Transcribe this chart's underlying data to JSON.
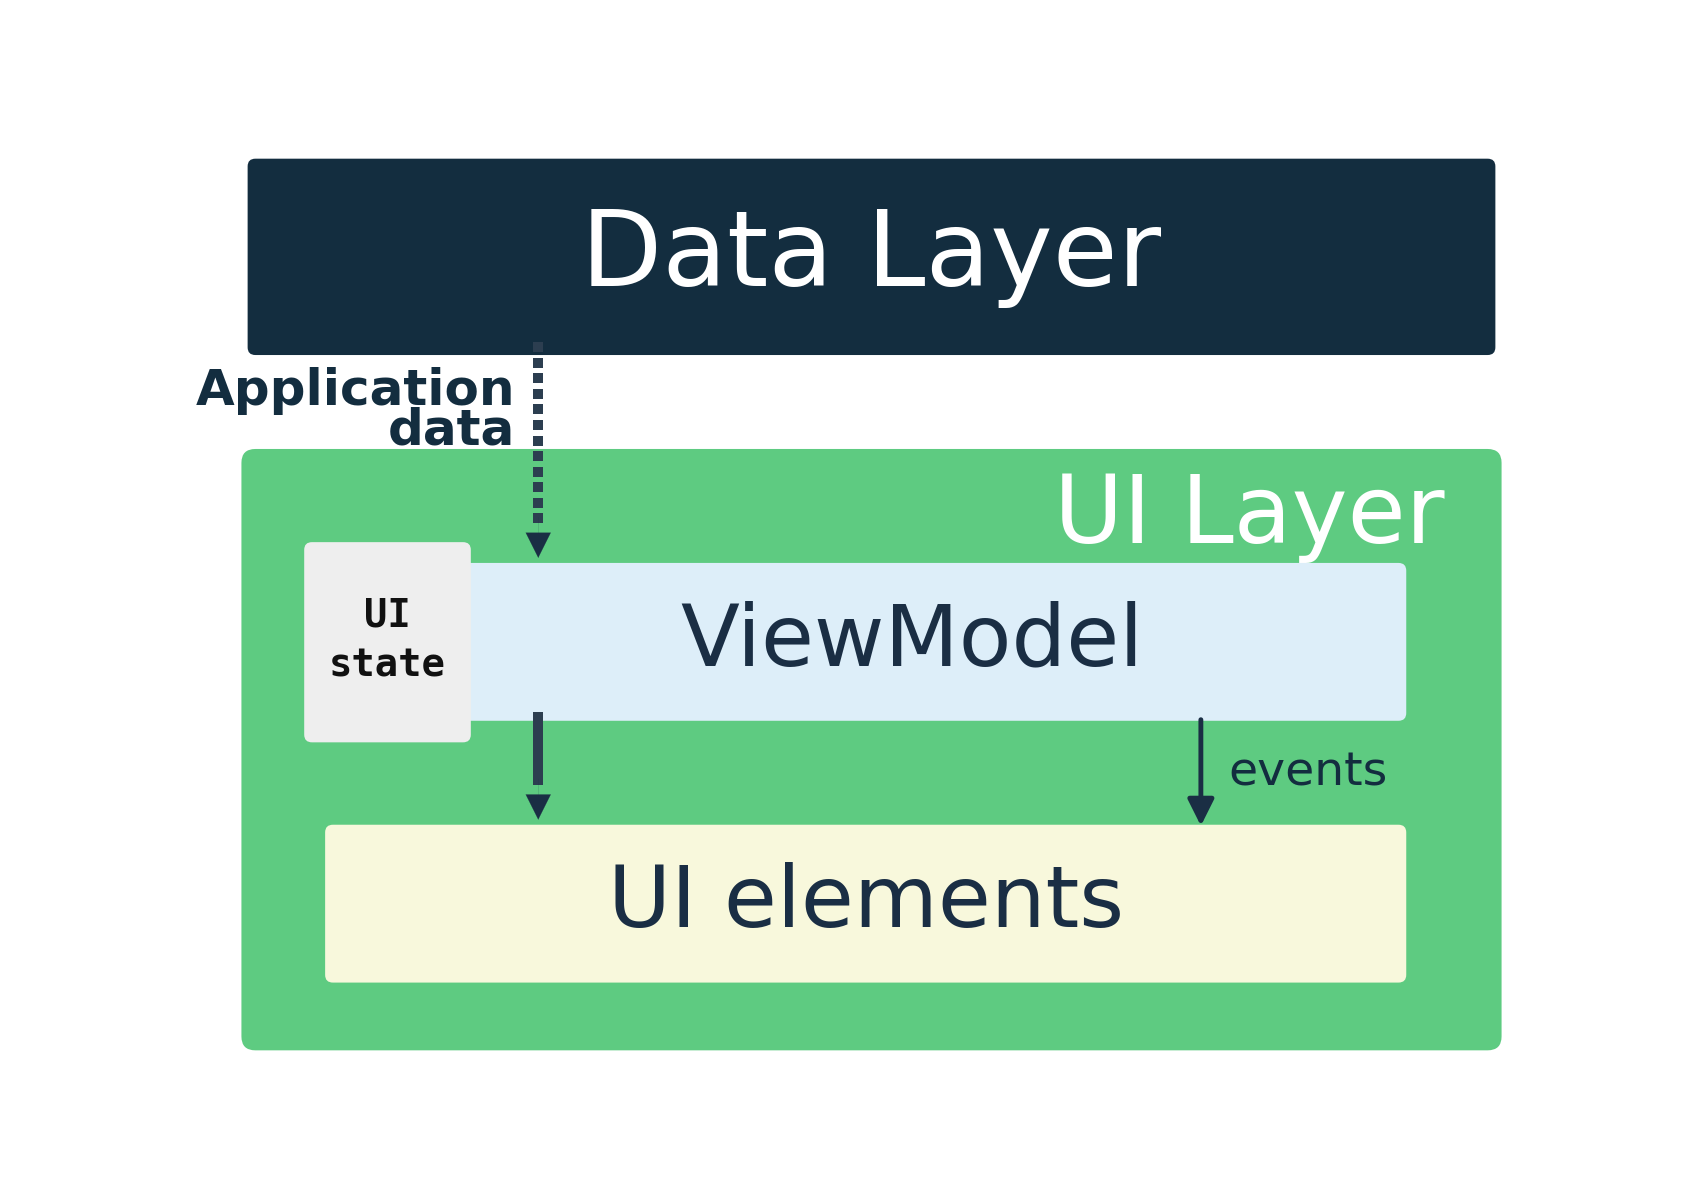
{
  "bg_color": "#ffffff",
  "data_layer_bg": "#132d3f",
  "data_layer_text": "Data Layer",
  "data_layer_text_color": "#ffffff",
  "ui_layer_bg": "#5ecb81",
  "ui_layer_text": "UI Layer",
  "ui_layer_text_color": "#ffffff",
  "viewmodel_bg": "#ddeef9",
  "viewmodel_text": "ViewModel",
  "viewmodel_text_color": "#1a2e44",
  "ui_elements_bg": "#f8f8dc",
  "ui_elements_text": "UI elements",
  "ui_elements_text_color": "#1a2e44",
  "ui_state_bg": "#eeeeee",
  "ui_state_text_line1": "UI",
  "ui_state_text_line2": "state",
  "ui_state_text_color": "#111111",
  "app_data_text_line1": "Application",
  "app_data_text_line2": "data",
  "app_data_text_color": "#132d3f",
  "events_text": "events",
  "events_text_color": "#132d3f",
  "arrow_color": "#1a2e44",
  "dot_color": "#2c3e50"
}
